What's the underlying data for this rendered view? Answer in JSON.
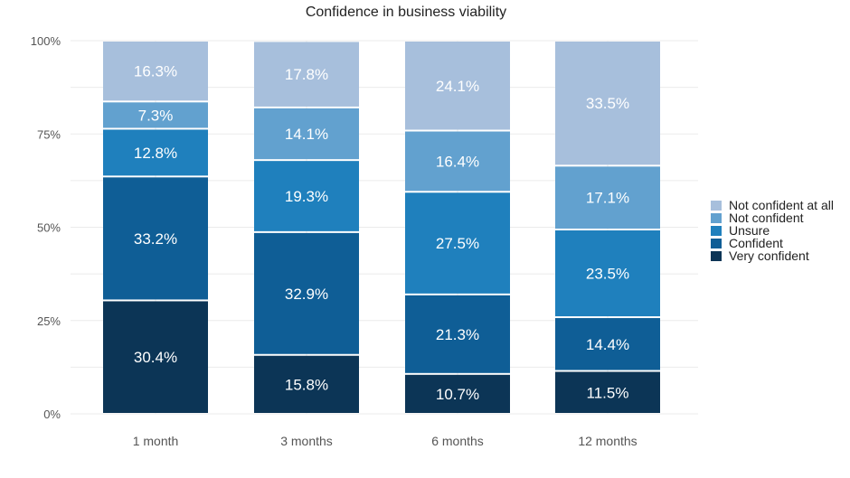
{
  "chart_data": {
    "type": "bar",
    "stacked": true,
    "title": "Confidence in business viability",
    "xlabel": "",
    "ylabel": "",
    "categories": [
      "1 month",
      "3 months",
      "6 months",
      "12 months"
    ],
    "y_ticks": [
      "0%",
      "25%",
      "50%",
      "75%",
      "100%"
    ],
    "ylim": [
      0,
      100
    ],
    "grid": true,
    "legend_position": "right",
    "series": [
      {
        "name": "Very confident",
        "color": "#0c3556",
        "values": [
          30.4,
          15.8,
          10.7,
          11.5
        ],
        "labels": [
          "30.4%",
          "15.8%",
          "10.7%",
          "11.5%"
        ]
      },
      {
        "name": "Confident",
        "color": "#0f5e96",
        "values": [
          33.2,
          32.9,
          21.3,
          14.4
        ],
        "labels": [
          "33.2%",
          "32.9%",
          "21.3%",
          "14.4%"
        ]
      },
      {
        "name": "Unsure",
        "color": "#1f80bd",
        "values": [
          12.8,
          19.3,
          27.5,
          23.5
        ],
        "labels": [
          "12.8%",
          "19.3%",
          "27.5%",
          "23.5%"
        ]
      },
      {
        "name": "Not confident",
        "color": "#62a1cf",
        "values": [
          7.3,
          14.1,
          16.4,
          17.1
        ],
        "labels": [
          "7.3%",
          "14.1%",
          "16.4%",
          "17.1%"
        ]
      },
      {
        "name": "Not confident at all",
        "color": "#a7bfdc",
        "values": [
          16.3,
          17.8,
          24.1,
          33.5
        ],
        "labels": [
          "16.3%",
          "17.8%",
          "24.1%",
          "33.5%"
        ]
      }
    ]
  }
}
